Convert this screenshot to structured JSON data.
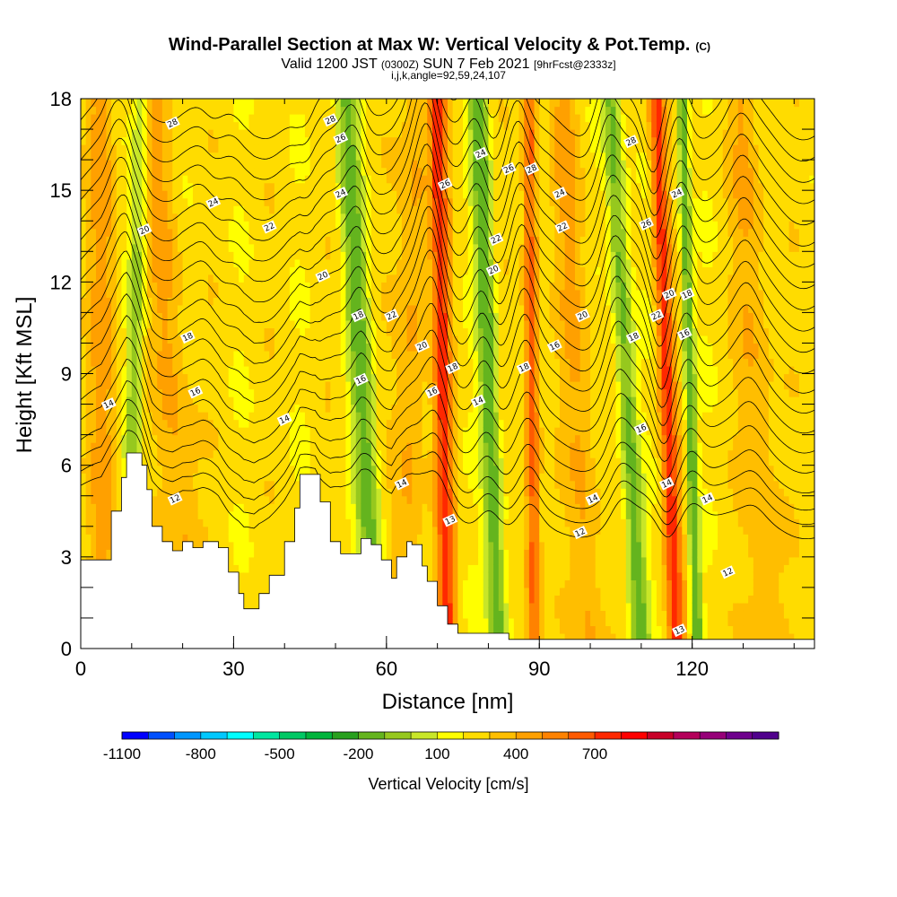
{
  "chart_data": {
    "type": "heatmap",
    "title": "Wind-Parallel Section at Max W: Vertical Velocity & Pot.Temp.",
    "title_mark": "(C)",
    "subtitle_parts": [
      "Valid 1200 JST",
      "(0300Z)",
      "SUN 7 Feb 2021",
      "[9hrFcst@2333z]"
    ],
    "params_line": "i,j,k,angle=92,59,24,107",
    "xlabel": "Distance [nm]",
    "ylabel": "Height [Kft MSL]",
    "xlim": [
      0,
      144
    ],
    "ylim": [
      0,
      18
    ],
    "x_ticks": [
      0,
      30,
      60,
      90,
      120
    ],
    "y_ticks": [
      0,
      3,
      6,
      9,
      12,
      15,
      18
    ],
    "colorbar": {
      "title": "Vertical Velocity [cm/s]",
      "tick_labels": [
        "-1100",
        "-800",
        "-500",
        "-200",
        "100",
        "400",
        "700"
      ],
      "colors": [
        "#0000ff",
        "#0050ff",
        "#0096ff",
        "#00c8ff",
        "#00ffff",
        "#00e6a0",
        "#00c864",
        "#00b43c",
        "#28a01e",
        "#64b41e",
        "#96c81e",
        "#c8e628",
        "#ffff00",
        "#ffdc00",
        "#ffbe00",
        "#ffa000",
        "#ff8200",
        "#ff5a00",
        "#ff2800",
        "#ff0000",
        "#c80028",
        "#b4005a",
        "#960078",
        "#6e008c",
        "#50008c"
      ]
    },
    "terrain_kft": [
      [
        0,
        2.9
      ],
      [
        4,
        2.9
      ],
      [
        6,
        4.5
      ],
      [
        8,
        5.6
      ],
      [
        9,
        6.4
      ],
      [
        11,
        6.4
      ],
      [
        12,
        6.0
      ],
      [
        13,
        5.2
      ],
      [
        14,
        4.0
      ],
      [
        16,
        3.5
      ],
      [
        18,
        3.2
      ],
      [
        20,
        3.5
      ],
      [
        22,
        3.3
      ],
      [
        24,
        3.5
      ],
      [
        27,
        3.3
      ],
      [
        29,
        2.5
      ],
      [
        31,
        1.8
      ],
      [
        32,
        1.3
      ],
      [
        34,
        1.3
      ],
      [
        35,
        1.8
      ],
      [
        37,
        2.4
      ],
      [
        40,
        3.5
      ],
      [
        42,
        4.6
      ],
      [
        43,
        5.7
      ],
      [
        46,
        5.7
      ],
      [
        47,
        4.8
      ],
      [
        49,
        3.5
      ],
      [
        51,
        3.1
      ],
      [
        53,
        3.1
      ],
      [
        55,
        3.6
      ],
      [
        57,
        3.4
      ],
      [
        59,
        2.9
      ],
      [
        61,
        2.3
      ],
      [
        62,
        3.0
      ],
      [
        64,
        3.5
      ],
      [
        65,
        3.4
      ],
      [
        67,
        2.7
      ],
      [
        68,
        2.2
      ],
      [
        70,
        1.4
      ],
      [
        72,
        0.8
      ],
      [
        74,
        0.5
      ],
      [
        84,
        0.3
      ],
      [
        144,
        0.3
      ]
    ],
    "theta_contours": [
      {
        "level": "12",
        "base_kft": 4.0
      },
      {
        "level": "12",
        "base_kft": 4.5
      },
      {
        "level": "13",
        "base_kft": 5.0
      },
      {
        "level": "13",
        "base_kft": 5.6
      },
      {
        "level": "14",
        "base_kft": 6.3
      },
      {
        "level": "14",
        "base_kft": 7.0
      },
      {
        "level": "14",
        "base_kft": 7.7
      },
      {
        "level": "16",
        "base_kft": 8.4
      },
      {
        "level": "16",
        "base_kft": 9.1
      },
      {
        "level": "18",
        "base_kft": 9.8
      },
      {
        "level": "18",
        "base_kft": 10.5
      },
      {
        "level": "20",
        "base_kft": 11.2
      },
      {
        "level": "20",
        "base_kft": 11.9
      },
      {
        "level": "22",
        "base_kft": 12.6
      },
      {
        "level": "22",
        "base_kft": 13.3
      },
      {
        "level": "24",
        "base_kft": 14.0
      },
      {
        "level": "24",
        "base_kft": 14.7
      },
      {
        "level": "26",
        "base_kft": 15.4
      },
      {
        "level": "26",
        "base_kft": 16.1
      },
      {
        "level": "28",
        "base_kft": 16.8
      },
      {
        "level": "28",
        "base_kft": 17.5
      }
    ],
    "contour_labels": [
      {
        "text": "28",
        "x": 18,
        "y": 17.2
      },
      {
        "text": "28",
        "x": 49,
        "y": 17.3
      },
      {
        "text": "26",
        "x": 51,
        "y": 16.7
      },
      {
        "text": "24",
        "x": 51,
        "y": 14.9
      },
      {
        "text": "24",
        "x": 26,
        "y": 14.6
      },
      {
        "text": "22",
        "x": 37,
        "y": 13.8
      },
      {
        "text": "20",
        "x": 12.5,
        "y": 13.7
      },
      {
        "text": "20",
        "x": 47.5,
        "y": 12.2
      },
      {
        "text": "18",
        "x": 21,
        "y": 10.2
      },
      {
        "text": "16",
        "x": 22.5,
        "y": 8.4
      },
      {
        "text": "14",
        "x": 5.5,
        "y": 8.0
      },
      {
        "text": "14",
        "x": 40,
        "y": 7.5
      },
      {
        "text": "12",
        "x": 18.5,
        "y": 4.9
      },
      {
        "text": "18",
        "x": 54.5,
        "y": 10.9
      },
      {
        "text": "22",
        "x": 61,
        "y": 10.9
      },
      {
        "text": "16",
        "x": 55,
        "y": 8.8
      },
      {
        "text": "20",
        "x": 67,
        "y": 9.9
      },
      {
        "text": "14",
        "x": 63,
        "y": 5.4
      },
      {
        "text": "26",
        "x": 71.5,
        "y": 15.2
      },
      {
        "text": "18",
        "x": 73,
        "y": 9.2
      },
      {
        "text": "16",
        "x": 69,
        "y": 8.4
      },
      {
        "text": "13",
        "x": 72.5,
        "y": 4.2
      },
      {
        "text": "24",
        "x": 78.5,
        "y": 16.2
      },
      {
        "text": "26",
        "x": 84,
        "y": 15.7
      },
      {
        "text": "28",
        "x": 88.5,
        "y": 15.7
      },
      {
        "text": "22",
        "x": 81.5,
        "y": 13.4
      },
      {
        "text": "20",
        "x": 81,
        "y": 12.4
      },
      {
        "text": "14",
        "x": 78,
        "y": 8.1
      },
      {
        "text": "18",
        "x": 87,
        "y": 9.2
      },
      {
        "text": "24",
        "x": 94,
        "y": 14.9
      },
      {
        "text": "22",
        "x": 94.5,
        "y": 13.8
      },
      {
        "text": "20",
        "x": 98.5,
        "y": 10.9
      },
      {
        "text": "16",
        "x": 93,
        "y": 9.9
      },
      {
        "text": "14",
        "x": 100.5,
        "y": 4.9
      },
      {
        "text": "12",
        "x": 98,
        "y": 3.8
      },
      {
        "text": "28",
        "x": 108,
        "y": 16.6
      },
      {
        "text": "26",
        "x": 111,
        "y": 13.9
      },
      {
        "text": "24",
        "x": 117,
        "y": 14.9
      },
      {
        "text": "22",
        "x": 113,
        "y": 10.9
      },
      {
        "text": "20",
        "x": 115.5,
        "y": 11.6
      },
      {
        "text": "16",
        "x": 118.5,
        "y": 10.3
      },
      {
        "text": "18",
        "x": 119,
        "y": 11.6
      },
      {
        "text": "18",
        "x": 108.5,
        "y": 10.2
      },
      {
        "text": "16",
        "x": 110,
        "y": 7.2
      },
      {
        "text": "14",
        "x": 115,
        "y": 5.4
      },
      {
        "text": "14",
        "x": 123,
        "y": 4.9
      },
      {
        "text": "12",
        "x": 127,
        "y": 2.5
      },
      {
        "text": "13",
        "x": 117.5,
        "y": 0.6
      }
    ]
  }
}
